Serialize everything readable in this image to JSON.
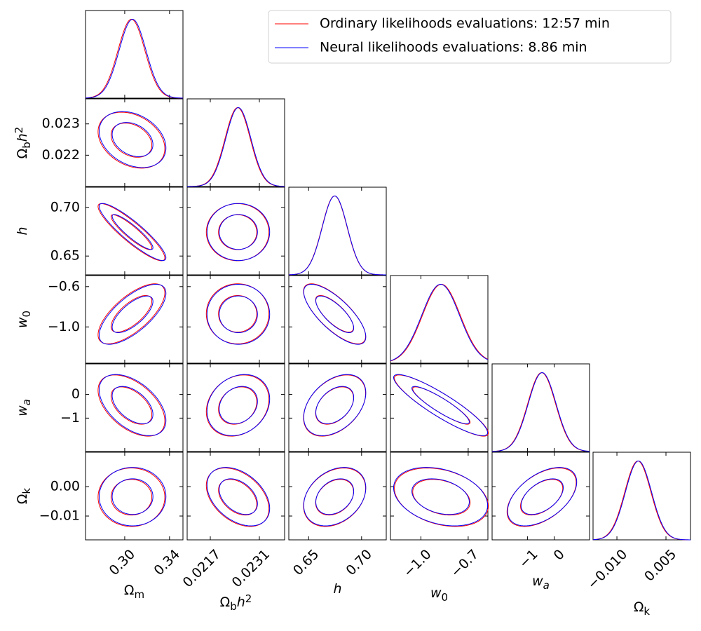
{
  "chart_data": {
    "type": "corner",
    "params": [
      {
        "label": [
          {
            "t": "Ω"
          },
          {
            "t": "m",
            "sub": true
          }
        ],
        "xlim": [
          0.265,
          0.352
        ],
        "xticks": [
          {
            "value": 0.3,
            "label": "0.30"
          },
          0.34
        ]
      },
      {
        "label": [
          {
            "t": "Ω"
          },
          {
            "t": "b",
            "sub": true
          },
          {
            "t": "h",
            "italic": true
          },
          {
            "t": "2",
            "sup": true
          }
        ],
        "xlim": [
          0.02104,
          0.02382
        ],
        "xticks": [
          0.0217,
          0.0231
        ],
        "ylim": [
          0.021,
          0.0238
        ],
        "yticks": [
          0.022,
          0.023
        ]
      },
      {
        "label": [
          {
            "t": "h",
            "italic": true
          }
        ],
        "xlim": [
          0.6313,
          0.7233
        ],
        "xticks": [
          0.65,
          {
            "value": 0.7,
            "label": "0.70"
          }
        ],
        "ylim": [
          0.6307,
          0.7207
        ],
        "yticks": [
          0.65,
          {
            "value": 0.7,
            "label": "0.70"
          }
        ]
      },
      {
        "label": [
          {
            "t": "w",
            "italic": true
          },
          {
            "t": "0",
            "sub": true
          }
        ],
        "xlim": [
          -1.193,
          -0.575
        ],
        "xticks": [
          {
            "value": -1.0,
            "label": "−1.0"
          },
          {
            "value": -0.7,
            "label": "−0.7"
          }
        ],
        "ylim": [
          -1.36,
          -0.49
        ],
        "yticks": [
          {
            "value": -0.6,
            "label": "−0.6"
          },
          {
            "value": -1.0,
            "label": "−1.0"
          }
        ]
      },
      {
        "label": [
          {
            "t": "w",
            "italic": true
          },
          {
            "t": "a",
            "sub": true,
            "italic": true
          }
        ],
        "xlim": [
          -2.32,
          1.32
        ],
        "xticks": [
          {
            "value": -1,
            "label": "−1"
          },
          0
        ],
        "ylim": [
          -2.41,
          1.29
        ],
        "yticks": [
          0,
          {
            "value": -1,
            "label": "−1"
          }
        ]
      },
      {
        "label": [
          {
            "t": "Ω"
          },
          {
            "t": "k",
            "sub": true
          }
        ],
        "xlim": [
          -0.0173,
          0.0125
        ],
        "xticks": [
          {
            "value": -0.01,
            "label": "−0.010"
          },
          0.005
        ],
        "ylim": [
          -0.0181,
          0.0117
        ],
        "yticks": [
          {
            "value": 0,
            "label": "0.00"
          },
          {
            "value": -0.01,
            "label": "−0.01"
          }
        ]
      }
    ],
    "series": [
      {
        "name": "Ordinary likelihoods evaluations: 12:57 min",
        "color": "#ff0000",
        "means": [
          0.306,
          0.02248,
          0.6745,
          -0.87,
          -0.47,
          -0.0036
        ],
        "sigmas": [
          0.012,
          0.00036,
          0.0118,
          0.12,
          0.52,
          0.004
        ],
        "corr": [
          [],
          [
            -0.3
          ],
          [
            -0.9,
            0.0
          ],
          [
            0.7,
            0.0,
            -0.75
          ],
          [
            -0.5,
            0.2,
            0.4,
            -0.9
          ],
          [
            0.0,
            -0.4,
            0.3,
            -0.3,
            0.5
          ]
        ]
      },
      {
        "name": "Neural likelihoods evaluations: 8.86 min",
        "color": "#0000ff",
        "means": [
          0.307,
          0.0225,
          0.6747,
          -0.875,
          -0.45,
          -0.0034
        ],
        "sigmas": [
          0.012,
          0.00036,
          0.0118,
          0.12,
          0.52,
          0.004
        ],
        "corr": [
          [],
          [
            -0.3
          ],
          [
            -0.9,
            0.0
          ],
          [
            0.7,
            0.0,
            -0.75
          ],
          [
            -0.5,
            0.2,
            0.4,
            -0.9
          ],
          [
            0.0,
            -0.4,
            0.3,
            -0.3,
            0.5
          ]
        ]
      }
    ],
    "legend": "upper right"
  }
}
